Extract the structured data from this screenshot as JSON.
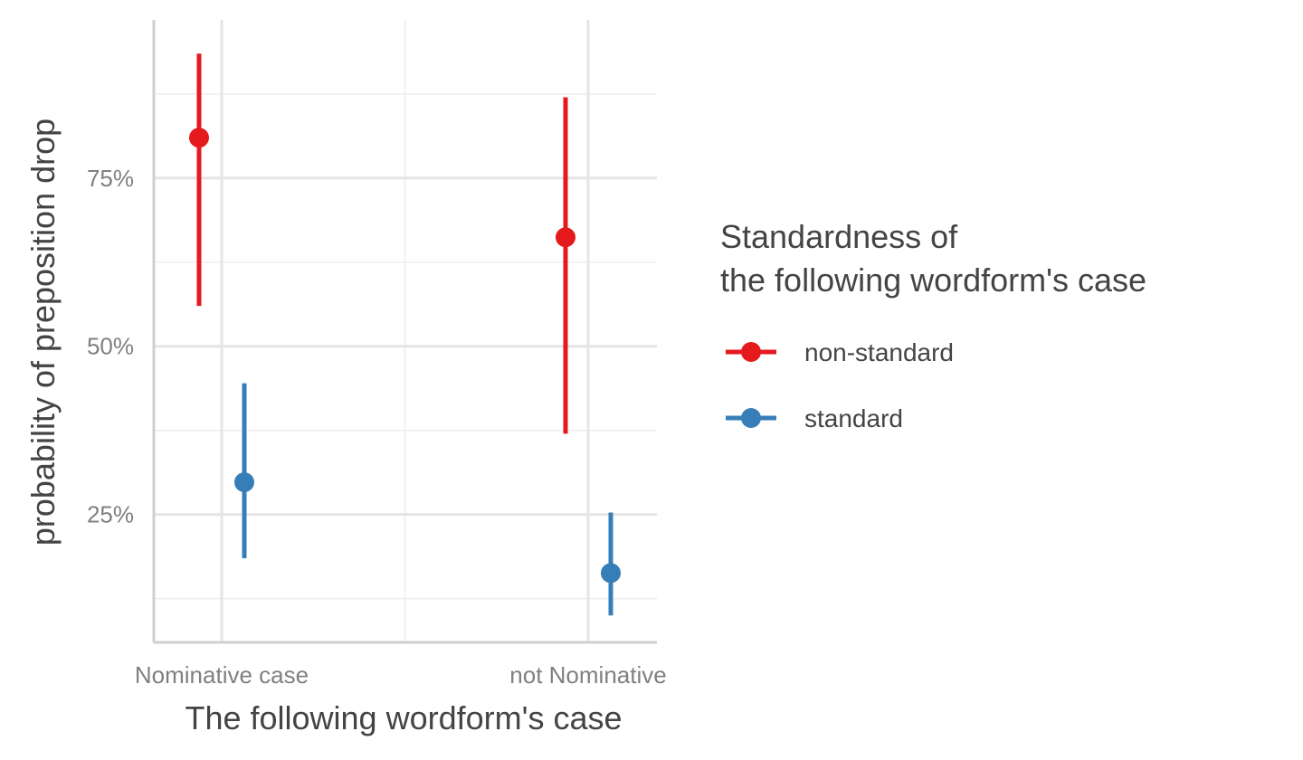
{
  "chart_data": {
    "type": "pointrange",
    "title": "",
    "xlabel": "The following wordform's case",
    "ylabel": "probability of preposition drop",
    "categories": [
      "Nominative case",
      "not Nominative"
    ],
    "y_unit": "percent",
    "ylim": [
      6.0,
      98.5
    ],
    "y_major_ticks": [
      25,
      50,
      75
    ],
    "y_tick_labels": [
      "25%",
      "50%",
      "75%"
    ],
    "y_minor_ticks": [
      12.5,
      37.5,
      62.5,
      87.5
    ],
    "grid": true,
    "legend": {
      "title_lines": [
        "Standardness of",
        "the following wordform's case"
      ],
      "position": "right"
    },
    "series": [
      {
        "name": "non-standard",
        "color": "#E41A1C",
        "values": [
          81.0,
          66.2
        ],
        "lower": [
          56.0,
          37.0
        ],
        "upper": [
          93.5,
          87.0
        ]
      },
      {
        "name": "standard",
        "color": "#377EB8",
        "values": [
          29.8,
          16.3
        ],
        "lower": [
          18.5,
          10.0
        ],
        "upper": [
          44.5,
          25.3
        ]
      }
    ]
  }
}
